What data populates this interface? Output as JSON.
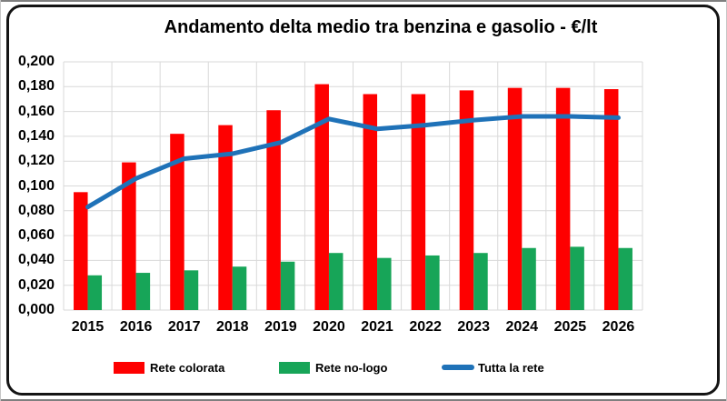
{
  "chart_data": {
    "type": "bar",
    "subtype": "grouped bars with overlaid line",
    "title": "Andamento delta medio tra benzina e gasolio - €/lt",
    "xlabel": "",
    "ylabel": "",
    "categories": [
      "2015",
      "2016",
      "2017",
      "2018",
      "2019",
      "2020",
      "2021",
      "2022",
      "2023",
      "2024",
      "2025",
      "2026"
    ],
    "series": [
      {
        "name": "Rete colorata",
        "kind": "bar",
        "color": "#FE0000",
        "values": [
          0.095,
          0.119,
          0.142,
          0.149,
          0.161,
          0.182,
          0.174,
          0.174,
          0.177,
          0.179,
          0.179,
          0.178
        ]
      },
      {
        "name": "Rete no-logo",
        "kind": "bar",
        "color": "#17A558",
        "values": [
          0.028,
          0.03,
          0.032,
          0.035,
          0.039,
          0.046,
          0.042,
          0.044,
          0.046,
          0.05,
          0.051,
          0.05
        ]
      },
      {
        "name": "Tutta la rete",
        "kind": "line",
        "color": "#1F72B8",
        "values": [
          0.083,
          0.106,
          0.122,
          0.126,
          0.135,
          0.154,
          0.146,
          0.149,
          0.153,
          0.156,
          0.156,
          0.155
        ]
      }
    ],
    "ylim": [
      0,
      0.2
    ],
    "y_tick_interval": 0.02,
    "y_tick_labels": [
      "0,200",
      "0,180",
      "0,160",
      "0,140",
      "0,120",
      "0,100",
      "0,080",
      "0,060",
      "0,040",
      "0,020",
      "0,000"
    ],
    "decimal_separator": ",",
    "grid": true,
    "gridline_color": "#D9D9D9",
    "legend_position": "bottom"
  }
}
